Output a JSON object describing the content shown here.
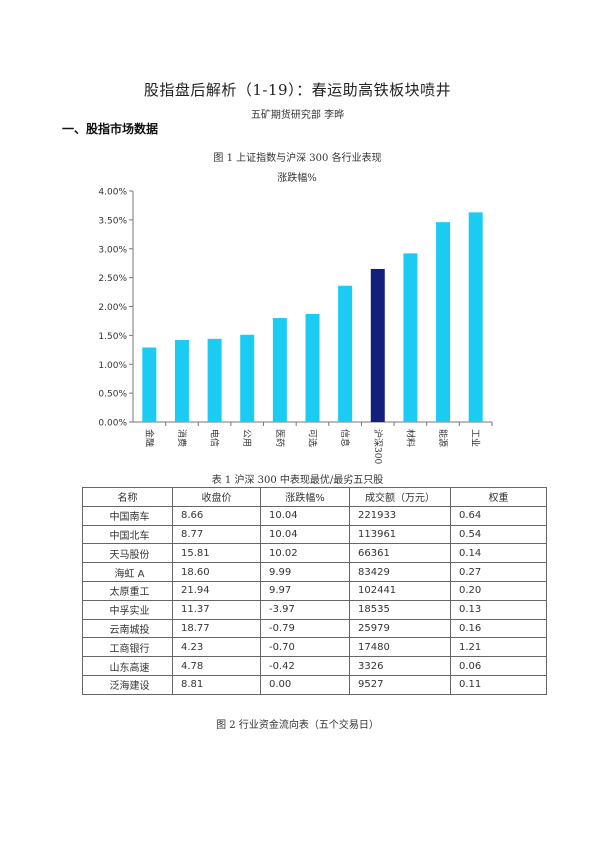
{
  "header": {
    "title": "股指盘后解析（1-19）：春运助高铁板块喷井",
    "author": "五矿期货研究部    李晔"
  },
  "section": {
    "heading": "一、股指市场数据"
  },
  "figure1": {
    "caption": "图 1    上证指数与沪深 300 各行业表现"
  },
  "chart_data": {
    "type": "bar",
    "title": "涨跌幅%",
    "categories": [
      "金融",
      "消费",
      "电信",
      "公用",
      "医药",
      "可选",
      "信息",
      "沪深300",
      "材料",
      "能源",
      "工业"
    ],
    "values": [
      1.29,
      1.42,
      1.44,
      1.51,
      1.8,
      1.87,
      2.36,
      2.65,
      2.92,
      3.46,
      3.63
    ],
    "highlight_category": "沪深300",
    "colors": {
      "bar": "#1ccbf2",
      "highlight": "#141f7c"
    },
    "ylim": [
      0,
      4
    ],
    "yticks": [
      "0.00%",
      "0.50%",
      "1.00%",
      "1.50%",
      "2.00%",
      "2.50%",
      "3.00%",
      "3.50%",
      "4.00%"
    ],
    "grid": false,
    "legend": "none"
  },
  "table1": {
    "caption": "表 1    沪深 300 中表现最优/最劣五只股",
    "headers": [
      "名称",
      "收盘价",
      "涨跌幅%",
      "成交额（万元）",
      "权重"
    ],
    "rows": [
      [
        "中国南车",
        "8.66",
        "10.04",
        "221933",
        "0.64"
      ],
      [
        "中国北车",
        "8.77",
        "10.04",
        "113961",
        "0.54"
      ],
      [
        "天马股份",
        "15.81",
        "10.02",
        "66361",
        "0.14"
      ],
      [
        "海虹 A",
        "18.60",
        "9.99",
        "83429",
        "0.27"
      ],
      [
        "太原重工",
        "21.94",
        "9.97",
        "102441",
        "0.20"
      ],
      [
        "中孚实业",
        "11.37",
        "-3.97",
        "18535",
        "0.13"
      ],
      [
        "云南城投",
        "18.77",
        "-0.79",
        "25979",
        "0.16"
      ],
      [
        "工商银行",
        "4.23",
        "-0.70",
        "17480",
        "1.21"
      ],
      [
        "山东高速",
        "4.78",
        "-0.42",
        "3326",
        "0.06"
      ],
      [
        "泛海建设",
        "8.81",
        "0.00",
        "9527",
        "0.11"
      ]
    ]
  },
  "figure2": {
    "caption": "图 2    行业资金流向表（五个交易日）"
  }
}
